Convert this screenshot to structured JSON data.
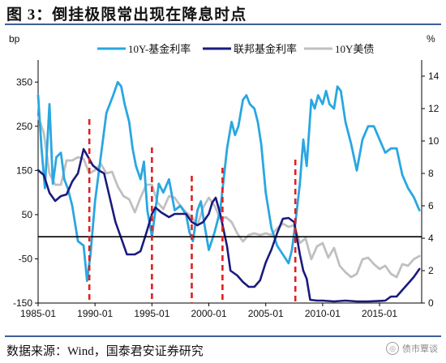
{
  "title": "图 3：倒挂极限常出现在降息时点",
  "source": "数据来源：Wind，国泰君安证券研究",
  "watermark": "债市覃谈",
  "colors": {
    "y10": "#29a7e1",
    "fed": "#1a1a7e",
    "tsy": "#c0c0c0",
    "marker": "#e02020",
    "zero": "#000000"
  },
  "chart_data": {
    "type": "line",
    "title": "",
    "left_unit": "bp",
    "right_unit": "%",
    "x_ticks": [
      "1985-01",
      "1990-01",
      "1995-01",
      "2000-01",
      "2005-01",
      "2010-01",
      "2015-01"
    ],
    "x_tick_values": [
      1985,
      1990,
      1995,
      2000,
      2005,
      2010,
      2015
    ],
    "xlim": [
      1985,
      2018.7
    ],
    "left_ylim": [
      -150,
      400
    ],
    "left_ticks": [
      -150,
      -50,
      50,
      150,
      250,
      350
    ],
    "right_ylim": [
      0,
      15
    ],
    "right_ticks": [
      0,
      2,
      4,
      6,
      8,
      10,
      12,
      14
    ],
    "legend_position": "top",
    "series": [
      {
        "name": "10Y-基金利率",
        "axis": "left",
        "color": "#29a7e1",
        "x": [
          1985,
          1985.3,
          1985.6,
          1986,
          1986.3,
          1986.6,
          1987,
          1987.3,
          1987.6,
          1988,
          1988.5,
          1989,
          1989.3,
          1989.6,
          1990,
          1990.3,
          1990.6,
          1991,
          1991.3,
          1991.6,
          1992,
          1992.3,
          1992.6,
          1993,
          1993.3,
          1993.6,
          1994,
          1994.3,
          1994.6,
          1995,
          1995.3,
          1995.6,
          1996,
          1996.5,
          1997,
          1997.5,
          1998,
          1998.3,
          1998.6,
          1999,
          1999.3,
          1999.6,
          2000,
          2000.5,
          2001,
          2001.3,
          2001.6,
          2002,
          2002.3,
          2002.6,
          2003,
          2003.3,
          2003.6,
          2004,
          2004.3,
          2004.6,
          2005,
          2005.5,
          2006,
          2006.5,
          2007,
          2007.3,
          2007.6,
          2008,
          2008.3,
          2008.6,
          2009,
          2009.3,
          2009.6,
          2010,
          2010.3,
          2010.6,
          2011,
          2011.3,
          2011.6,
          2012,
          2012.5,
          2013,
          2013.5,
          2014,
          2014.5,
          2015,
          2015.5,
          2016,
          2016.5,
          2017,
          2017.5,
          2018,
          2018.5
        ],
        "y": [
          320,
          200,
          110,
          300,
          120,
          180,
          190,
          130,
          110,
          70,
          -10,
          -20,
          -100,
          -40,
          80,
          140,
          200,
          280,
          300,
          320,
          350,
          340,
          300,
          260,
          200,
          160,
          130,
          170,
          60,
          0,
          60,
          120,
          100,
          130,
          60,
          70,
          50,
          10,
          -10,
          60,
          80,
          30,
          -30,
          10,
          60,
          130,
          200,
          260,
          230,
          250,
          310,
          320,
          300,
          290,
          260,
          210,
          100,
          20,
          -20,
          -40,
          -60,
          -30,
          30,
          120,
          220,
          160,
          310,
          290,
          320,
          300,
          330,
          300,
          290,
          340,
          330,
          260,
          210,
          150,
          220,
          250,
          250,
          220,
          190,
          200,
          200,
          140,
          110,
          90,
          60
        ]
      },
      {
        "name": "联邦基金利率",
        "axis": "right",
        "color": "#1a1a7e",
        "x": [
          1985,
          1985.5,
          1986,
          1986.5,
          1987,
          1987.5,
          1988,
          1988.5,
          1989,
          1989.4,
          1989.8,
          1990.3,
          1990.8,
          1991.3,
          1991.8,
          1992.3,
          1992.8,
          1993.5,
          1994,
          1994.5,
          1995,
          1995.3,
          1995.8,
          1996.5,
          1997,
          1997.5,
          1998,
          1998.5,
          1999,
          1999.5,
          2000,
          2000.3,
          2000.6,
          2001,
          2001.3,
          2001.6,
          2001.9,
          2002.5,
          2003,
          2003.5,
          2004,
          2004.5,
          2005,
          2005.5,
          2006,
          2006.5,
          2007,
          2007.5,
          2008,
          2008.3,
          2008.6,
          2008.9,
          2009.5,
          2010,
          2011,
          2012,
          2013,
          2014,
          2015,
          2015.5,
          2016,
          2016.5,
          2017,
          2017.5,
          2018,
          2018.5
        ],
        "y": [
          8.2,
          7.9,
          6.8,
          6.3,
          6.6,
          6.7,
          7.5,
          8.0,
          9.5,
          9.0,
          8.5,
          8.2,
          8.0,
          6.5,
          5.0,
          4.0,
          3.0,
          3.0,
          3.2,
          4.3,
          5.5,
          5.9,
          5.6,
          5.3,
          5.5,
          5.5,
          5.5,
          5.0,
          4.8,
          5.0,
          5.5,
          6.2,
          6.5,
          5.5,
          4.5,
          3.5,
          2.0,
          1.7,
          1.3,
          1.0,
          1.0,
          1.4,
          2.5,
          3.3,
          4.3,
          5.2,
          5.25,
          5.0,
          3.0,
          2.0,
          1.5,
          0.2,
          0.15,
          0.15,
          0.1,
          0.15,
          0.1,
          0.1,
          0.13,
          0.15,
          0.4,
          0.4,
          0.8,
          1.2,
          1.6,
          2.1
        ]
      },
      {
        "name": "10Y美债",
        "axis": "right",
        "color": "#c0c0c0",
        "x": [
          1985,
          1985.5,
          1986,
          1986.5,
          1987,
          1987.5,
          1988,
          1988.5,
          1989,
          1989.5,
          1990,
          1990.5,
          1991,
          1991.5,
          1992,
          1992.5,
          1993,
          1993.5,
          1994,
          1994.5,
          1995,
          1995.5,
          1996,
          1996.5,
          1997,
          1997.5,
          1998,
          1998.5,
          1999,
          1999.5,
          2000,
          2000.5,
          2001,
          2001.5,
          2002,
          2002.5,
          2003,
          2003.5,
          2004,
          2004.5,
          2005,
          2005.5,
          2006,
          2006.5,
          2007,
          2007.5,
          2008,
          2008.5,
          2009,
          2009.5,
          2010,
          2010.5,
          2011,
          2011.5,
          2012,
          2012.5,
          2013,
          2013.5,
          2014,
          2014.5,
          2015,
          2015.5,
          2016,
          2016.5,
          2017,
          2017.5,
          2018,
          2018.5
        ],
        "y": [
          11.5,
          10.5,
          8.0,
          7.3,
          7.3,
          8.8,
          8.8,
          9.0,
          8.9,
          8.0,
          8.2,
          8.6,
          8.0,
          8.1,
          7.2,
          6.6,
          6.4,
          5.6,
          6.5,
          7.3,
          7.3,
          6.2,
          5.8,
          6.6,
          6.5,
          6.0,
          5.6,
          5.3,
          4.8,
          5.9,
          6.5,
          6.0,
          5.2,
          5.3,
          5.0,
          4.3,
          3.8,
          4.2,
          4.3,
          4.2,
          4.3,
          4.2,
          4.6,
          4.9,
          4.7,
          4.8,
          3.7,
          4.0,
          2.7,
          3.5,
          3.7,
          2.8,
          3.4,
          2.3,
          1.9,
          1.6,
          1.8,
          2.7,
          2.8,
          2.4,
          2.1,
          2.3,
          1.8,
          1.6,
          2.4,
          2.3,
          2.7,
          2.9
        ]
      }
    ],
    "rate_cut_markers": [
      1989.5,
      1995.0,
      1998.5,
      2001.2,
      2007.6
    ]
  }
}
